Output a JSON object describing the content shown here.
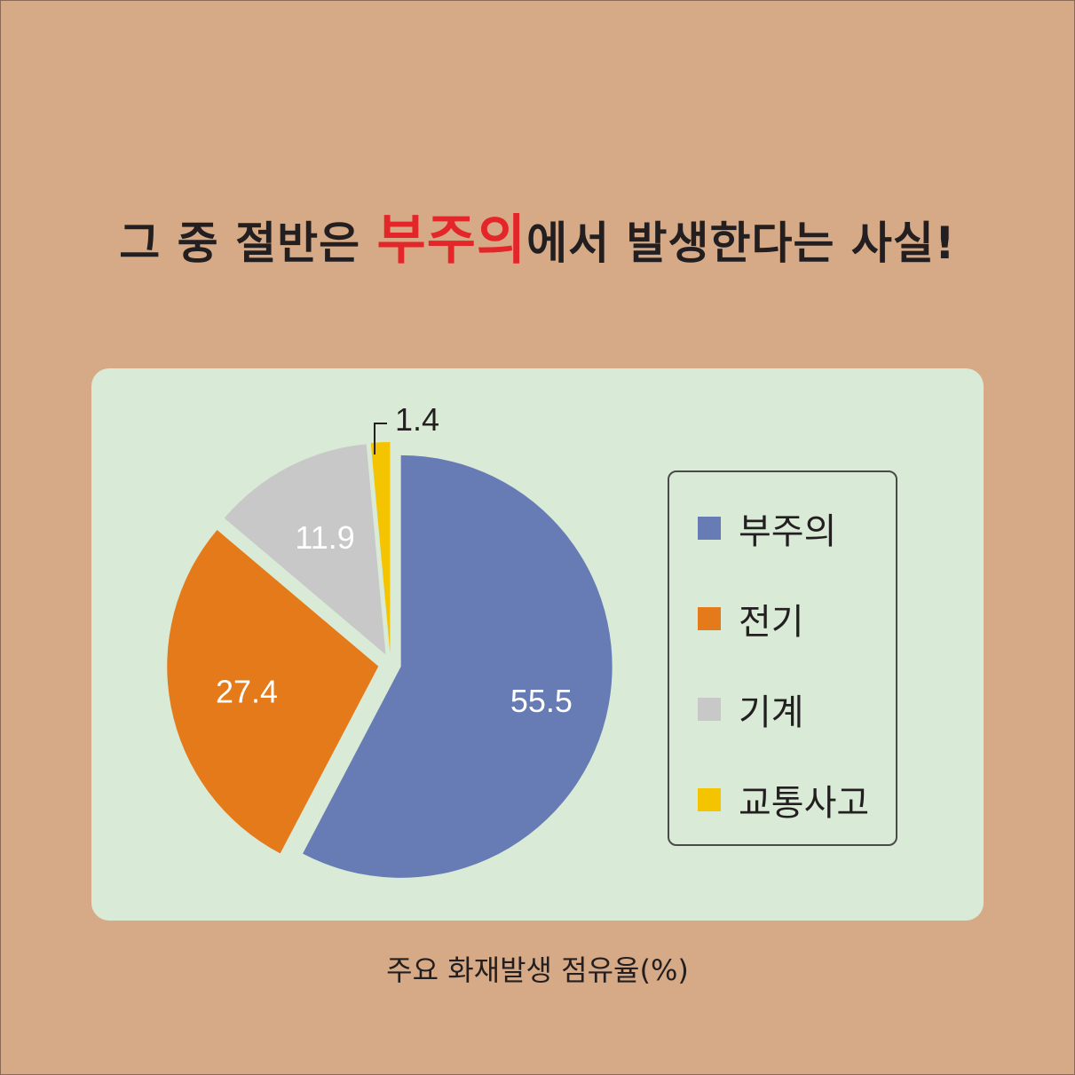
{
  "title": {
    "before": "그 중 절반은 ",
    "highlight": "부주의",
    "after": "에서 발생한다는 사실!"
  },
  "chart_data": {
    "type": "pie",
    "categories": [
      "부주의",
      "전기",
      "기계",
      "교통사고"
    ],
    "values": [
      55.5,
      27.4,
      11.9,
      1.4
    ],
    "colors": [
      "#677cb4",
      "#e57a1a",
      "#c8c8c8",
      "#f5c400"
    ],
    "legend": "right",
    "caption": "주요 화재발생 점유율(%)"
  }
}
